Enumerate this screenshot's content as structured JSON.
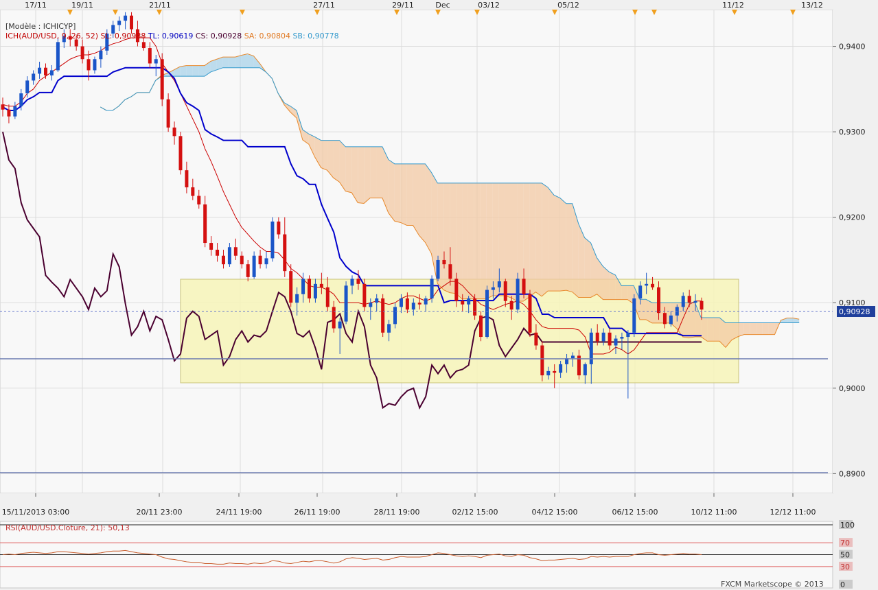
{
  "chart_data": [
    {
      "type": "candlestick",
      "model_label": "[Modèle : ICHICYP]",
      "legend": [
        {
          "text": "ICH(AUD/USD, 9, 26, 52)",
          "color": "#c00000"
        },
        {
          "text": "SL: 0,90988",
          "color": "#c00000"
        },
        {
          "text": "TL: 0,90619",
          "color": "#0000c0"
        },
        {
          "text": "CS: 0,90928",
          "color": "#4a0030"
        },
        {
          "text": "SA: 0,90804",
          "color": "#e07820"
        },
        {
          "text": "SB: 0,90778",
          "color": "#3399cc"
        }
      ],
      "top_dates": [
        "17/11",
        "19/11",
        "21/11",
        "27/11",
        "29/11",
        "Dec",
        "03/12",
        "05/12",
        "11/12",
        "13/12"
      ],
      "bottom_dates": [
        "15/11/2013 03:00",
        "20/11 23:00",
        "24/11 19:00",
        "26/11 19:00",
        "28/11 19:00",
        "02/12 15:00",
        "04/12 15:00",
        "06/12 15:00",
        "10/12 11:00",
        "12/12 11:00"
      ],
      "y_ticks": [
        "0,9400",
        "0,9300",
        "0,9200",
        "0,9100",
        "0,9000",
        "0,8900"
      ],
      "ylim": [
        0.8877,
        0.9443
      ],
      "current_price": "0,90928",
      "colors": {
        "up": "#1a55c8",
        "down": "#d41010",
        "tenkan": "#cc0000",
        "kijun": "#0000cc",
        "chikou": "#4a0030",
        "cloud_bear": "#f3c9a4",
        "cloud_bull": "#a9d3ea"
      },
      "candles": [
        [
          0.9332,
          0.934,
          0.9318,
          0.9326
        ],
        [
          0.9326,
          0.9332,
          0.931,
          0.9318
        ],
        [
          0.9318,
          0.9335,
          0.9315,
          0.933
        ],
        [
          0.933,
          0.935,
          0.9325,
          0.9345
        ],
        [
          0.9345,
          0.9365,
          0.934,
          0.936
        ],
        [
          0.936,
          0.9372,
          0.9355,
          0.9368
        ],
        [
          0.9368,
          0.9382,
          0.9362,
          0.9375
        ],
        [
          0.9375,
          0.938,
          0.9362,
          0.9366
        ],
        [
          0.9366,
          0.9378,
          0.936,
          0.9372
        ],
        [
          0.9372,
          0.941,
          0.937,
          0.9405
        ],
        [
          0.9405,
          0.942,
          0.9398,
          0.9412
        ],
        [
          0.9412,
          0.942,
          0.94,
          0.9408
        ],
        [
          0.9408,
          0.9412,
          0.9395,
          0.94
        ],
        [
          0.94,
          0.9408,
          0.938,
          0.9385
        ],
        [
          0.9385,
          0.9395,
          0.936,
          0.9372
        ],
        [
          0.9372,
          0.9388,
          0.9368,
          0.9385
        ],
        [
          0.9385,
          0.94,
          0.9375,
          0.9395
        ],
        [
          0.9395,
          0.942,
          0.939,
          0.9415
        ],
        [
          0.9415,
          0.943,
          0.941,
          0.9425
        ],
        [
          0.9425,
          0.9435,
          0.9418,
          0.943
        ],
        [
          0.943,
          0.944,
          0.942,
          0.9436
        ],
        [
          0.9436,
          0.944,
          0.9415,
          0.942
        ],
        [
          0.942,
          0.943,
          0.94,
          0.9405
        ],
        [
          0.9405,
          0.9412,
          0.9395,
          0.9398
        ],
        [
          0.9398,
          0.9405,
          0.9375,
          0.938
        ],
        [
          0.938,
          0.939,
          0.9365,
          0.9385
        ],
        [
          0.9385,
          0.9392,
          0.933,
          0.9338
        ],
        [
          0.9338,
          0.9345,
          0.93,
          0.9305
        ],
        [
          0.9305,
          0.9312,
          0.9285,
          0.9295
        ],
        [
          0.9295,
          0.93,
          0.925,
          0.9255
        ],
        [
          0.9255,
          0.9265,
          0.9228,
          0.9235
        ],
        [
          0.9235,
          0.9245,
          0.922,
          0.9225
        ],
        [
          0.9225,
          0.9232,
          0.921,
          0.9215
        ],
        [
          0.9215,
          0.9225,
          0.9165,
          0.917
        ],
        [
          0.917,
          0.9178,
          0.9155,
          0.9162
        ],
        [
          0.9162,
          0.917,
          0.9148,
          0.9155
        ],
        [
          0.9155,
          0.9162,
          0.914,
          0.9145
        ],
        [
          0.9145,
          0.917,
          0.9142,
          0.9165
        ],
        [
          0.9165,
          0.9175,
          0.915,
          0.9155
        ],
        [
          0.9155,
          0.916,
          0.914,
          0.9145
        ],
        [
          0.9145,
          0.915,
          0.9125,
          0.913
        ],
        [
          0.913,
          0.916,
          0.9128,
          0.9155
        ],
        [
          0.9155,
          0.9162,
          0.914,
          0.9145
        ],
        [
          0.9145,
          0.916,
          0.914,
          0.9152
        ],
        [
          0.9152,
          0.92,
          0.9148,
          0.9195
        ],
        [
          0.9195,
          0.92,
          0.9175,
          0.918
        ],
        [
          0.918,
          0.92,
          0.913,
          0.9137
        ],
        [
          0.9137,
          0.9145,
          0.9095,
          0.91
        ],
        [
          0.91,
          0.9118,
          0.9085,
          0.911
        ],
        [
          0.911,
          0.9135,
          0.91,
          0.9128
        ],
        [
          0.9128,
          0.9132,
          0.91,
          0.9105
        ],
        [
          0.9105,
          0.9128,
          0.91,
          0.9122
        ],
        [
          0.9122,
          0.9135,
          0.911,
          0.9118
        ],
        [
          0.9118,
          0.913,
          0.909,
          0.9095
        ],
        [
          0.9095,
          0.9102,
          0.9065,
          0.907
        ],
        [
          0.907,
          0.9082,
          0.904,
          0.9078
        ],
        [
          0.9078,
          0.9125,
          0.9075,
          0.912
        ],
        [
          0.912,
          0.9132,
          0.911,
          0.9128
        ],
        [
          0.9128,
          0.9138,
          0.9115,
          0.9122
        ],
        [
          0.9122,
          0.9128,
          0.909,
          0.9095
        ],
        [
          0.9095,
          0.9105,
          0.908,
          0.91
        ],
        [
          0.91,
          0.911,
          0.909,
          0.9105
        ],
        [
          0.9105,
          0.911,
          0.906,
          0.9065
        ],
        [
          0.9065,
          0.908,
          0.9055,
          0.9075
        ],
        [
          0.9075,
          0.91,
          0.907,
          0.9095
        ],
        [
          0.9095,
          0.911,
          0.9088,
          0.9105
        ],
        [
          0.9105,
          0.9112,
          0.9088,
          0.9092
        ],
        [
          0.9092,
          0.9105,
          0.9085,
          0.91
        ],
        [
          0.91,
          0.911,
          0.9092,
          0.9098
        ],
        [
          0.9098,
          0.9108,
          0.909,
          0.9105
        ],
        [
          0.9105,
          0.9132,
          0.91,
          0.9128
        ],
        [
          0.9128,
          0.9155,
          0.9125,
          0.915
        ],
        [
          0.915,
          0.916,
          0.914,
          0.9145
        ],
        [
          0.9145,
          0.9165,
          0.912,
          0.9128
        ],
        [
          0.9128,
          0.9135,
          0.9095,
          0.9102
        ],
        [
          0.9102,
          0.911,
          0.909,
          0.9098
        ],
        [
          0.9098,
          0.9108,
          0.9088,
          0.9105
        ],
        [
          0.9105,
          0.911,
          0.908,
          0.9085
        ],
        [
          0.9085,
          0.909,
          0.9055,
          0.906
        ],
        [
          0.906,
          0.912,
          0.9058,
          0.9115
        ],
        [
          0.9115,
          0.9125,
          0.9105,
          0.9118
        ],
        [
          0.9118,
          0.914,
          0.9112,
          0.9125
        ],
        [
          0.9125,
          0.9128,
          0.9095,
          0.9102
        ],
        [
          0.9102,
          0.9108,
          0.908,
          0.9092
        ],
        [
          0.9092,
          0.9135,
          0.9088,
          0.9128
        ],
        [
          0.9128,
          0.914,
          0.9105,
          0.911
        ],
        [
          0.911,
          0.9115,
          0.906,
          0.9065
        ],
        [
          0.9065,
          0.9075,
          0.9045,
          0.905
        ],
        [
          0.905,
          0.9055,
          0.9008,
          0.9015
        ],
        [
          0.9015,
          0.9025,
          0.901,
          0.902
        ],
        [
          0.902,
          0.9028,
          0.9,
          0.9018
        ],
        [
          0.9018,
          0.9032,
          0.9012,
          0.9028
        ],
        [
          0.9028,
          0.904,
          0.9018,
          0.9035
        ],
        [
          0.9035,
          0.9042,
          0.9025,
          0.9038
        ],
        [
          0.9038,
          0.9045,
          0.901,
          0.9015
        ],
        [
          0.9015,
          0.903,
          0.9005,
          0.9028
        ],
        [
          0.9028,
          0.907,
          0.9005,
          0.9065
        ],
        [
          0.9065,
          0.9075,
          0.905,
          0.9055
        ],
        [
          0.9055,
          0.907,
          0.905,
          0.9065
        ],
        [
          0.9065,
          0.907,
          0.9045,
          0.905
        ],
        [
          0.905,
          0.9062,
          0.904,
          0.9058
        ],
        [
          0.9058,
          0.9065,
          0.9045,
          0.906
        ],
        [
          0.906,
          0.9068,
          0.8988,
          0.9065
        ],
        [
          0.9065,
          0.911,
          0.906,
          0.9105
        ],
        [
          0.9105,
          0.9125,
          0.9098,
          0.912
        ],
        [
          0.912,
          0.9135,
          0.911,
          0.9122
        ],
        [
          0.9122,
          0.913,
          0.9115,
          0.9118
        ],
        [
          0.9118,
          0.9125,
          0.908,
          0.9088
        ],
        [
          0.9088,
          0.9095,
          0.907,
          0.9075
        ],
        [
          0.9075,
          0.909,
          0.9072,
          0.9085
        ],
        [
          0.9085,
          0.9098,
          0.9078,
          0.9095
        ],
        [
          0.9095,
          0.9112,
          0.909,
          0.9108
        ],
        [
          0.9108,
          0.9115,
          0.9095,
          0.91
        ],
        [
          0.91,
          0.911,
          0.909,
          0.9102
        ],
        [
          0.9102,
          0.9106,
          0.908,
          0.9092
        ]
      ],
      "tenkan": [
        0.9332,
        0.933,
        0.933,
        0.9335,
        0.9345,
        0.935,
        0.936,
        0.9365,
        0.937,
        0.9375,
        0.938,
        0.9385,
        0.9388,
        0.939,
        0.939,
        0.9392,
        0.9395,
        0.94,
        0.9403,
        0.9405,
        0.9408,
        0.941,
        0.941,
        0.941,
        0.941,
        0.94,
        0.938,
        0.937,
        0.936,
        0.9345,
        0.933,
        0.9315,
        0.93,
        0.928,
        0.9265,
        0.9248,
        0.923,
        0.9215,
        0.92,
        0.9188,
        0.918,
        0.9172,
        0.9165,
        0.916,
        0.916,
        0.9158,
        0.915,
        0.914,
        0.9135,
        0.9128,
        0.912,
        0.9118,
        0.9118,
        0.9115,
        0.911,
        0.91,
        0.91,
        0.91,
        0.91,
        0.9098,
        0.91,
        0.9102,
        0.91,
        0.9098,
        0.91,
        0.9105,
        0.9108,
        0.9108,
        0.9105,
        0.9102,
        0.9105,
        0.9115,
        0.912,
        0.9125,
        0.9125,
        0.912,
        0.9112,
        0.9105,
        0.9098,
        0.9095,
        0.9092,
        0.9095,
        0.9098,
        0.91,
        0.9102,
        0.9098,
        0.909,
        0.908,
        0.9072,
        0.907,
        0.907,
        0.907,
        0.907,
        0.907,
        0.9068,
        0.906,
        0.904,
        0.904,
        0.904,
        0.9042,
        0.9048,
        0.9045,
        0.904,
        0.9045,
        0.9055,
        0.9065,
        0.9065,
        0.9065,
        0.9065,
        0.9065,
        0.9065,
        0.9082,
        0.9098,
        0.9102,
        0.9102
      ]
    },
    {
      "type": "line",
      "label": "RSI(AUD/USD.Cloture, 21): 50,13",
      "y_ticks": [
        "100",
        "70",
        "50",
        "30",
        "0"
      ],
      "ylim": [
        0,
        100
      ],
      "levels": [
        70,
        50,
        30
      ],
      "values": [
        50,
        51,
        50,
        52,
        53,
        54,
        53,
        52,
        53,
        55,
        55,
        54,
        53,
        52,
        51,
        52,
        53,
        55,
        56,
        56,
        57,
        55,
        53,
        52,
        51,
        50,
        46,
        43,
        42,
        40,
        38,
        37,
        37,
        35,
        35,
        34,
        34,
        36,
        35,
        35,
        34,
        36,
        35,
        36,
        40,
        39,
        36,
        35,
        37,
        39,
        38,
        40,
        40,
        38,
        36,
        38,
        43,
        45,
        44,
        42,
        43,
        44,
        41,
        42,
        45,
        47,
        46,
        46,
        46,
        47,
        50,
        53,
        52,
        50,
        48,
        47,
        48,
        47,
        45,
        49,
        50,
        51,
        48,
        47,
        50,
        49,
        45,
        43,
        40,
        41,
        41,
        42,
        43,
        44,
        42,
        43,
        47,
        46,
        47,
        46,
        47,
        47,
        47,
        50,
        52,
        53,
        53,
        50,
        49,
        50,
        51,
        52,
        51,
        51,
        50
      ]
    }
  ],
  "footer": "FXCM Marketscope © 2013"
}
